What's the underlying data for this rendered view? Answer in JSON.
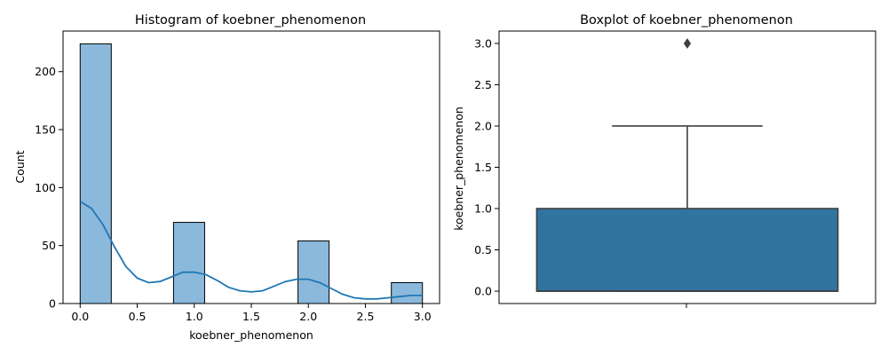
{
  "chart_data": [
    {
      "type": "bar",
      "title": "Histogram of koebner_phenomenon",
      "xlabel": "koebner_phenomenon",
      "ylabel": "Count",
      "xlim": [
        -0.15,
        3.15
      ],
      "ylim": [
        0,
        235
      ],
      "xticks": [
        0.0,
        0.5,
        1.0,
        1.5,
        2.0,
        2.5,
        3.0
      ],
      "xtick_labels": [
        "0.0",
        "0.5",
        "1.0",
        "1.5",
        "2.0",
        "2.5",
        "3.0"
      ],
      "yticks": [
        0,
        50,
        100,
        150,
        200
      ],
      "ytick_labels": [
        "0",
        "50",
        "100",
        "150",
        "200"
      ],
      "bin_width": 0.2727,
      "bars": [
        {
          "x0": 0.0,
          "count": 224
        },
        {
          "x0": 0.8182,
          "count": 70
        },
        {
          "x0": 1.9091,
          "count": 54
        },
        {
          "x0": 2.7273,
          "count": 18
        }
      ],
      "kde": {
        "x": [
          0.0,
          0.1,
          0.2,
          0.3,
          0.4,
          0.5,
          0.6,
          0.7,
          0.8,
          0.9,
          1.0,
          1.1,
          1.2,
          1.3,
          1.4,
          1.5,
          1.6,
          1.7,
          1.8,
          1.9,
          2.0,
          2.1,
          2.2,
          2.3,
          2.4,
          2.5,
          2.6,
          2.7,
          2.8,
          2.9,
          3.0
        ],
        "y": [
          88,
          82,
          68,
          49,
          32,
          22,
          18,
          19,
          23,
          27,
          27,
          25,
          20,
          14,
          11,
          10,
          11,
          15,
          19,
          21,
          21,
          18,
          13,
          8,
          5,
          4,
          4,
          5,
          6,
          7,
          7
        ]
      },
      "bar_color": "#8bb9dc",
      "line_color": "#1f77b4"
    },
    {
      "type": "boxplot",
      "title": "Boxplot of koebner_phenomenon",
      "ylabel": "koebner_phenomenon",
      "ylim": [
        -0.15,
        3.15
      ],
      "yticks": [
        0.0,
        0.5,
        1.0,
        1.5,
        2.0,
        2.5,
        3.0
      ],
      "ytick_labels": [
        "0.0",
        "0.5",
        "1.0",
        "1.5",
        "2.0",
        "2.5",
        "3.0"
      ],
      "box": {
        "q1": 0.0,
        "median": 0.0,
        "q3": 1.0,
        "whisker_low": 0.0,
        "whisker_high": 2.0,
        "outliers": [
          3.0
        ]
      },
      "box_color": "#3274a1",
      "edge_color": "#3f3f3f"
    }
  ]
}
